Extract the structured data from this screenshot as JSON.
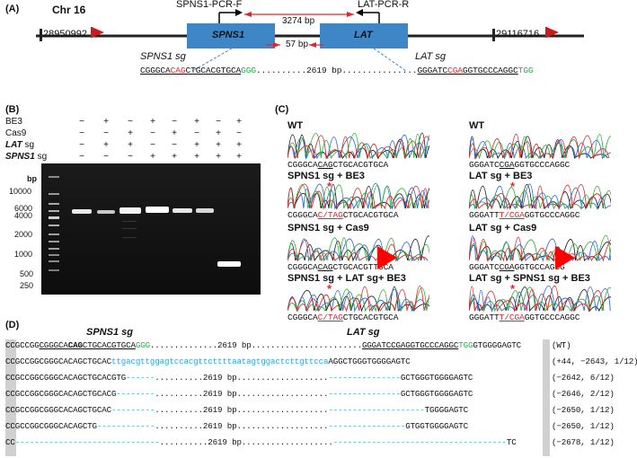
{
  "panel_a": {
    "letter": "(A)",
    "chromosome": "Chr 16",
    "coord_left": "28950992",
    "coord_right": "29116716",
    "primer_f": "SPNS1-PCR-F",
    "primer_r": "LAT-PCR-R",
    "dist_long": "3274 bp",
    "dist_short": "57 bp",
    "gene1": "SPNS1",
    "gene2": "LAT",
    "sg1_label": "SPNS1 sg",
    "sg2_label": "LAT sg",
    "seq_left": {
      "p1": "CGGGCA",
      "p2": "CAG",
      "p3": "CTGCACGTGCA",
      "p4": "GGG"
    },
    "seq_mid": "..........2619 bp...............",
    "seq_right": {
      "p1": "GGGATC",
      "p2": "CGA",
      "p3": "GGTGCCCAGGC",
      "p4": "TGG"
    }
  },
  "panel_b": {
    "letter": "(B)",
    "rows": [
      {
        "label": "BE3",
        "signs": [
          "−",
          "+",
          "−",
          "+",
          "−",
          "+",
          "−",
          "+"
        ]
      },
      {
        "label": "Cas9",
        "signs": [
          "−",
          "−",
          "+",
          "−",
          "+",
          "−",
          "+",
          "−"
        ]
      },
      {
        "label": "LAT sg",
        "italic_part": "LAT",
        "signs": [
          "−",
          "+",
          "+",
          "−",
          "−",
          "+",
          "+",
          "+"
        ]
      },
      {
        "label": "SPNS1 sg",
        "italic_part": "SPNS1",
        "signs": [
          "−",
          "−",
          "−",
          "+",
          "+",
          "+",
          "+",
          "+"
        ]
      }
    ],
    "bp_unit": "bp",
    "ladder": [
      "10000",
      "6000",
      "4000",
      "2000",
      "1000",
      "500",
      "250"
    ]
  },
  "panel_c": {
    "letter": "(C)",
    "left": [
      {
        "title": "WT",
        "seq": {
          "a": "CGGGCA",
          "b": "CAG",
          "c": "CTGCACGTGCA"
        }
      },
      {
        "title": "SPNS1 sg + BE3",
        "seq": {
          "a": "CGGGCA",
          "b": "C/TAG",
          "c": "CTGCACGTGCA"
        }
      },
      {
        "title": "SPNS1 sg + Cas9",
        "seq": {
          "a": "CGGGCA",
          "b": "CAG",
          "c": "CTGCAC",
          "d": "GTTGCA"
        }
      },
      {
        "title": "SPNS1 sg + LAT sg+ BE3",
        "seq": {
          "a": "CGGGCA",
          "b": "C/TAG",
          "c": "CTGCACGTGCA"
        }
      }
    ],
    "right": [
      {
        "title": "WT",
        "seq": {
          "a": "GGGATC",
          "b": "CGA",
          "c": "GGTGCCCAGGC"
        }
      },
      {
        "title": "LAT sg + BE3",
        "seq": {
          "a": "GGGATT",
          "b": "T/CGA",
          "c": "GGTGCCCAGGC"
        }
      },
      {
        "title": "LAT sg + Cas9",
        "seq": {
          "a": "GGGATC",
          "b": "CGA",
          "c": "GGTG",
          "d": "CCAGGG"
        }
      },
      {
        "title": "LAT sg + SPNS1 sg + BE3",
        "seq": {
          "a": "GGGATT",
          "b": "T/CGA",
          "c": "GGTGCCCAGGC"
        }
      }
    ],
    "star": "*"
  },
  "panel_d": {
    "letter": "(D)",
    "sg1": "SPNS1 sg",
    "sg2": "LAT sg",
    "wt": {
      "start": "CC",
      "a": "GCCGG",
      "b": "CGGGCA",
      "c": "CAG",
      "d": "CTGCACGTGCA",
      "e": "GGG",
      "f": "..............2619 bp.......................",
      "g": "GGGATCCGAGGTGCCCAGGC",
      "h": "TGG",
      "i": "GTGGGGAGT",
      "end": "C",
      "note": "(WT)"
    },
    "ins": {
      "black1": "CCGCCGGCGGGCACAGCTGCAC",
      "cyan": "ttgacgttggagtccacgttcttttaatagtggactcttgttcca",
      "black2": "AGGCTGGGTGGGGAGT",
      "end": "C",
      "note": "(+44, −2643, 1/12)"
    },
    "dels": [
      {
        "left": "CCGCCGGCGGGCACAGCTGCACGTG",
        "dash1": "------",
        "mid": "..........2619 bp...................",
        "dash2": "---------------",
        "right": "GCTGGGTGGGGAGT",
        "end": "C",
        "note": "(−2642, 6/12)"
      },
      {
        "left": "CCGCCGGCGGGCACAGCTGCACG",
        "dash1": "--------",
        "mid": "..........2619 bp...................",
        "dash2": "---------------",
        "right": "GCTGGGTGGGGAGT",
        "end": "C",
        "note": "(−2646, 2/12)"
      },
      {
        "left": "CCGCCGGCGGGCACAGCTGCAC",
        "dash1": "---------",
        "mid": "..........2619 bp...................",
        "dash2": "--------------------",
        "right": "TGGGGAGT",
        "end": "C",
        "note": "(−2650, 1/12)"
      },
      {
        "left": "CCGCCGGCGGGCACAGCTG",
        "dash1": "------------",
        "mid": "..........2619 bp...................",
        "dash2": "----------------",
        "right": "GTGGTGGGGAGT",
        "end": "C",
        "note": "(−2650, 1/12)"
      },
      {
        "left": "CC",
        "dash1": "------------------------------",
        "mid": "..........2619 bp...................",
        "dash2": "------------------------------------",
        "right": "",
        "end": "TC",
        "note": "(−2678, 1/12)"
      }
    ]
  },
  "colors": {
    "red": "#e0262c",
    "green": "#33a853",
    "cyan": "#2aa6d8",
    "gene_box": "#3f86c7"
  }
}
